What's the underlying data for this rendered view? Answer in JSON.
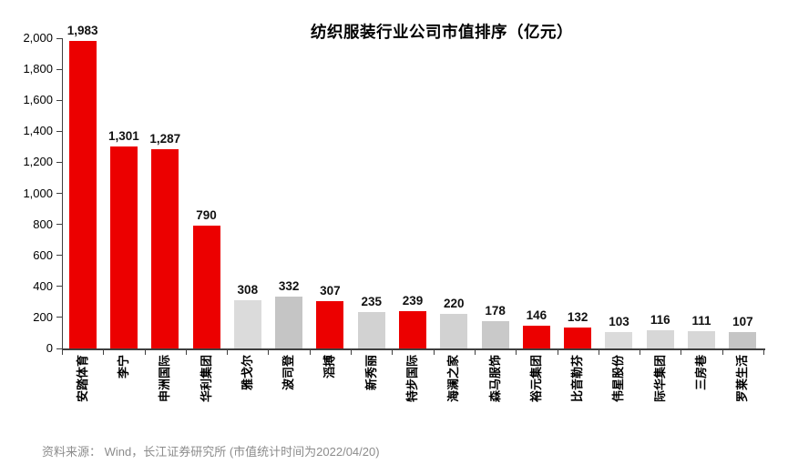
{
  "page": {
    "title": "纺织服装行业公司市值排序（亿元）",
    "footnote": "资料来源： Wind，长江证券研究所 (市值统计时间为2022/04/20)"
  },
  "colors": {
    "bar_red": "#EC0000",
    "axis": "#3f3f3f",
    "text": "#000000",
    "footnote_gray": "#8C8C8C"
  },
  "chart_data": {
    "type": "bar",
    "title": "纺织服装行业公司市值排序（亿元）",
    "unit": "亿元",
    "categories": [
      "安踏体育",
      "李宁",
      "申洲国际",
      "华利集团",
      "雅戈尔",
      "波司登",
      "滔搏",
      "新秀丽",
      "特步国际",
      "海澜之家",
      "森马服饰",
      "裕元集团",
      "比音勒芬",
      "伟星股份",
      "际华集团",
      "三房巷",
      "罗莱生活"
    ],
    "values": [
      1983,
      1301,
      1287,
      790,
      308,
      332,
      307,
      235,
      239,
      220,
      178,
      146,
      132,
      103,
      116,
      111,
      107
    ],
    "value_labels": [
      "1,983",
      "1,301",
      "1,287",
      "790",
      "308",
      "332",
      "307",
      "235",
      "239",
      "220",
      "178",
      "146",
      "132",
      "103",
      "116",
      "111",
      "107"
    ],
    "bar_colors": [
      "#EC0000",
      "#EC0000",
      "#EC0000",
      "#EC0000",
      "#DBDBDB",
      "#C5C5C5",
      "#EC0000",
      "#D2D2D2",
      "#EC0000",
      "#D2D2D2",
      "#C9C9C9",
      "#EC0000",
      "#EC0000",
      "#DBDBDB",
      "#D7D7D7",
      "#D7D7D7",
      "#C5C5C5"
    ],
    "xlabel": "",
    "ylabel": "",
    "ylim": [
      0,
      2000
    ],
    "ytick_step": 200,
    "ytick_labels": [
      "0",
      "200",
      "400",
      "600",
      "800",
      "1,000",
      "1,200",
      "1,400",
      "1,600",
      "1,800",
      "2,000"
    ],
    "grid": false,
    "legend": null,
    "x_labels_rotation": -90,
    "source_note": "资料来源： Wind，长江证券研究所 (市值统计时间为2022/04/20)"
  }
}
